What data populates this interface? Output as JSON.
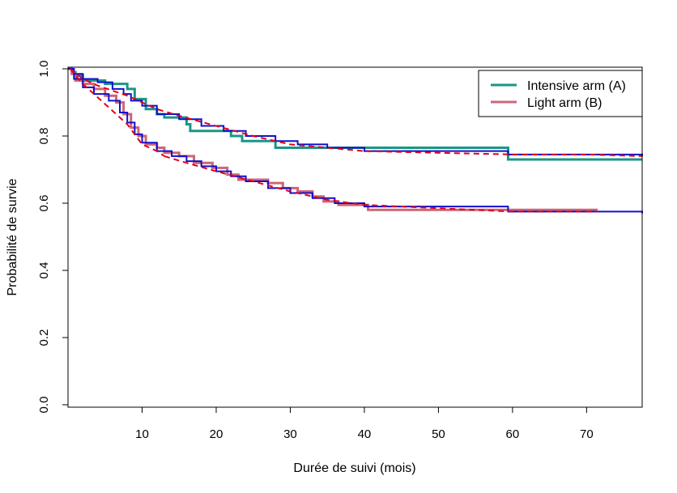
{
  "chart_data": {
    "type": "line",
    "xlabel": "Durée de suivi (mois)",
    "ylabel": "Probabilité de survie",
    "xlim": [
      0,
      77.5
    ],
    "ylim": [
      0,
      1
    ],
    "x_ticks": [
      10,
      20,
      30,
      40,
      50,
      60,
      70
    ],
    "y_ticks": [
      0.0,
      0.2,
      0.4,
      0.6,
      0.8,
      1.0
    ],
    "y_tick_labels": [
      "0.0",
      "0.2",
      "0.4",
      "0.6",
      "0.8",
      "1.0"
    ],
    "grid": false,
    "legend_position": "top-right",
    "legend": [
      {
        "label": "Intensive arm (A)",
        "color": "#1a9688"
      },
      {
        "label": "Light arm (B)",
        "color": "#cc6677"
      }
    ],
    "series": [
      {
        "name": "Intensive arm (A)",
        "style": "step",
        "color": "#1a9688",
        "width": 3,
        "x": [
          0,
          0.5,
          1,
          2,
          5,
          8,
          9,
          10.5,
          12,
          13,
          16,
          16.5,
          18,
          20,
          22,
          23.5,
          26,
          28,
          30,
          34,
          36,
          40,
          59.4,
          77.5
        ],
        "y": [
          1.0,
          0.99,
          0.98,
          0.965,
          0.955,
          0.94,
          0.91,
          0.88,
          0.865,
          0.855,
          0.835,
          0.815,
          0.815,
          0.815,
          0.8,
          0.785,
          0.785,
          0.765,
          0.765,
          0.765,
          0.765,
          0.765,
          0.73,
          0.73
        ]
      },
      {
        "name": "Light arm (B)",
        "style": "step",
        "color": "#cc6677",
        "width": 3,
        "x": [
          0,
          0.5,
          1,
          2,
          3.5,
          5,
          6.5,
          7.5,
          8.5,
          9.5,
          10.5,
          12,
          13,
          15,
          17,
          19.5,
          21.5,
          23,
          27,
          29,
          31,
          33,
          34.5,
          36.5,
          40.5,
          50,
          71.5
        ],
        "y": [
          1.0,
          0.985,
          0.965,
          0.955,
          0.94,
          0.92,
          0.9,
          0.865,
          0.825,
          0.8,
          0.775,
          0.765,
          0.75,
          0.74,
          0.72,
          0.705,
          0.685,
          0.67,
          0.66,
          0.645,
          0.635,
          0.62,
          0.605,
          0.595,
          0.58,
          0.58,
          0.58
        ]
      },
      {
        "name": "",
        "style": "step",
        "color": "#1010cc",
        "width": 2,
        "x": [
          0,
          0.8,
          2,
          4,
          6,
          7.5,
          8.5,
          10,
          12,
          15,
          18,
          21,
          24,
          28,
          31,
          35,
          40,
          59.4,
          77.5
        ],
        "y": [
          1.0,
          0.985,
          0.97,
          0.96,
          0.94,
          0.925,
          0.905,
          0.89,
          0.865,
          0.85,
          0.83,
          0.815,
          0.8,
          0.785,
          0.775,
          0.765,
          0.755,
          0.745,
          0.74
        ]
      },
      {
        "name": "",
        "style": "step",
        "color": "#1010cc",
        "width": 2,
        "x": [
          0,
          0.8,
          2,
          3.5,
          5.5,
          7,
          8,
          9,
          10,
          12,
          14,
          16,
          18,
          20,
          22,
          24,
          27,
          30,
          33,
          36,
          40,
          59.4,
          77.5
        ],
        "y": [
          1.0,
          0.97,
          0.945,
          0.925,
          0.905,
          0.87,
          0.84,
          0.805,
          0.78,
          0.755,
          0.74,
          0.725,
          0.71,
          0.695,
          0.68,
          0.665,
          0.645,
          0.63,
          0.615,
          0.6,
          0.59,
          0.575,
          0.57
        ]
      },
      {
        "name": "",
        "style": "dashed",
        "color": "#e0001a",
        "width": 2,
        "x": [
          0.3,
          2,
          4,
          6,
          8,
          10,
          12,
          15,
          20,
          25,
          30,
          35,
          40,
          50,
          60,
          70,
          77.5
        ],
        "y": [
          1.0,
          0.97,
          0.95,
          0.935,
          0.92,
          0.9,
          0.88,
          0.86,
          0.83,
          0.8,
          0.775,
          0.765,
          0.755,
          0.75,
          0.745,
          0.745,
          0.74
        ]
      },
      {
        "name": "",
        "style": "dashed",
        "color": "#e0001a",
        "width": 2,
        "x": [
          0.3,
          2,
          4,
          6,
          8,
          9,
          10,
          12,
          13
        ],
        "y": [
          1.0,
          0.955,
          0.915,
          0.875,
          0.835,
          0.805,
          0.775,
          0.755,
          0.74
        ]
      },
      {
        "name": "",
        "style": "dashed",
        "color": "#e0001a",
        "width": 2,
        "x": [
          13,
          16,
          20,
          25,
          30,
          35,
          40,
          50,
          60,
          71.5
        ],
        "y": [
          0.74,
          0.72,
          0.695,
          0.665,
          0.635,
          0.61,
          0.595,
          0.585,
          0.575,
          0.575
        ]
      }
    ]
  }
}
